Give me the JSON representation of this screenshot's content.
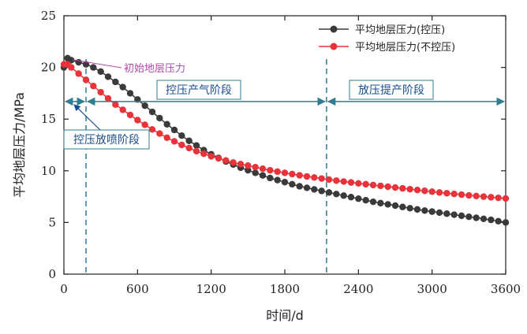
{
  "chart_data": {
    "type": "line",
    "title": "",
    "xlabel": "时间/d",
    "ylabel": "平均地层压力/MPa",
    "xlim": [
      0,
      3600
    ],
    "ylim": [
      0,
      25
    ],
    "xticks": [
      0,
      600,
      1200,
      1800,
      2400,
      3000,
      3600
    ],
    "yticks": [
      0,
      5,
      10,
      15,
      20,
      25
    ],
    "xtick_labels": [
      "0",
      "600",
      "1200",
      "1800",
      "2400",
      "3000",
      "3600"
    ],
    "ytick_labels": [
      "0",
      "5",
      "10",
      "15",
      "20",
      "25"
    ],
    "legend_position": "top-right",
    "series": [
      {
        "name": "平均地层压力(控压)",
        "color": "#3a3a3a",
        "x": [
          0,
          30,
          60,
          120,
          180,
          240,
          300,
          360,
          420,
          480,
          540,
          600,
          660,
          720,
          780,
          840,
          900,
          960,
          1020,
          1080,
          1140,
          1200,
          1260,
          1320,
          1380,
          1440,
          1500,
          1560,
          1620,
          1680,
          1740,
          1800,
          1860,
          1920,
          1980,
          2040,
          2100,
          2160,
          2220,
          2280,
          2340,
          2400,
          2460,
          2520,
          2580,
          2640,
          2700,
          2760,
          2820,
          2880,
          2940,
          3000,
          3060,
          3120,
          3180,
          3240,
          3300,
          3360,
          3420,
          3480,
          3540,
          3600
        ],
        "values": [
          20.0,
          20.9,
          20.7,
          20.5,
          20.3,
          20.0,
          19.6,
          19.1,
          18.6,
          18.1,
          17.5,
          16.9,
          16.3,
          15.7,
          15.1,
          14.5,
          13.95,
          13.4,
          12.9,
          12.45,
          12.0,
          11.6,
          11.25,
          10.9,
          10.6,
          10.3,
          10.05,
          9.8,
          9.55,
          9.3,
          9.1,
          8.9,
          8.7,
          8.5,
          8.35,
          8.2,
          8.05,
          7.9,
          7.75,
          7.6,
          7.45,
          7.3,
          7.15,
          7.0,
          6.87,
          6.75,
          6.63,
          6.5,
          6.38,
          6.26,
          6.15,
          6.05,
          5.95,
          5.85,
          5.75,
          5.65,
          5.55,
          5.45,
          5.35,
          5.25,
          5.12,
          5.0
        ]
      },
      {
        "name": "平均地层压力(不控压)",
        "color": "#e8333a",
        "x": [
          0,
          30,
          60,
          120,
          180,
          240,
          300,
          360,
          420,
          480,
          540,
          600,
          660,
          720,
          780,
          840,
          900,
          960,
          1020,
          1080,
          1140,
          1200,
          1260,
          1320,
          1380,
          1440,
          1500,
          1560,
          1620,
          1680,
          1740,
          1800,
          1860,
          1920,
          1980,
          2040,
          2100,
          2160,
          2220,
          2280,
          2340,
          2400,
          2460,
          2520,
          2580,
          2640,
          2700,
          2760,
          2820,
          2880,
          2940,
          3000,
          3060,
          3120,
          3180,
          3240,
          3300,
          3360,
          3420,
          3480,
          3540,
          3600
        ],
        "values": [
          20.3,
          20.3,
          20.0,
          19.4,
          18.8,
          18.2,
          17.6,
          17.0,
          16.4,
          15.9,
          15.4,
          14.9,
          14.45,
          14.0,
          13.6,
          13.2,
          12.85,
          12.5,
          12.2,
          11.9,
          11.65,
          11.4,
          11.2,
          11.0,
          10.8,
          10.65,
          10.5,
          10.35,
          10.2,
          10.05,
          9.92,
          9.8,
          9.68,
          9.56,
          9.45,
          9.35,
          9.25,
          9.15,
          9.05,
          8.96,
          8.87,
          8.78,
          8.7,
          8.62,
          8.54,
          8.46,
          8.38,
          8.3,
          8.22,
          8.14,
          8.06,
          7.98,
          7.9,
          7.83,
          7.76,
          7.69,
          7.62,
          7.56,
          7.5,
          7.44,
          7.38,
          7.32
        ]
      }
    ],
    "vlines": [
      180,
      2140
    ],
    "annotations": {
      "initial_pressure": {
        "text": "初始地层压力",
        "color": "#b04aa9",
        "x": 30,
        "y": 20.9
      },
      "stage_control_release": {
        "text": "控压放喷阶段",
        "x_start": 0,
        "x_end": 180,
        "y": 16.7
      },
      "stage_control_production": {
        "text": "控压产气阶段",
        "x_start": 180,
        "x_end": 2140,
        "y": 16.7
      },
      "stage_release_production": {
        "text": "放压提产阶段",
        "x_start": 2140,
        "x_end": 3600,
        "y": 16.7
      }
    }
  }
}
